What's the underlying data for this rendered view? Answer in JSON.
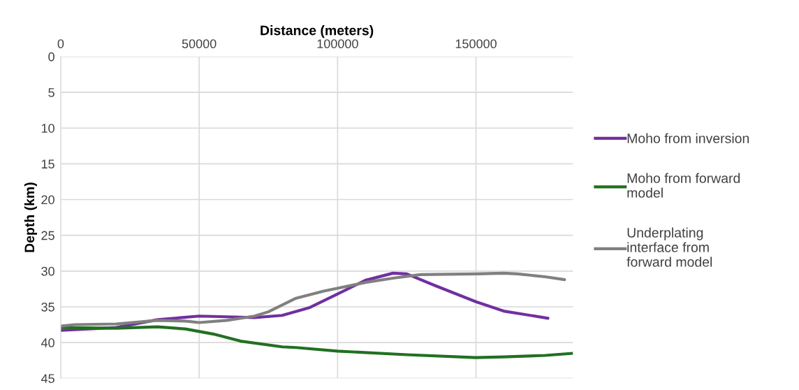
{
  "chart_data": {
    "type": "line",
    "xlabel": "Distance (meters)",
    "ylabel": "Depth (km)",
    "xlim": [
      0,
      185000
    ],
    "xticks": [
      0,
      50000,
      100000,
      150000
    ],
    "ylim": [
      45,
      0
    ],
    "yticks": [
      0,
      5,
      10,
      15,
      20,
      25,
      30,
      35,
      40,
      45
    ],
    "grid": true,
    "legend": "right",
    "marker": "none",
    "line_style": "solid",
    "series": [
      {
        "name": "Moho from inversion",
        "color": "#7030a0",
        "x": [
          0,
          20000,
          35000,
          50000,
          60000,
          70000,
          80000,
          90000,
          100000,
          110000,
          120000,
          125000,
          135000,
          150000,
          160000,
          176000
        ],
        "values": [
          38.3,
          37.9,
          36.8,
          36.3,
          36.4,
          36.5,
          36.2,
          35.1,
          33.2,
          31.3,
          30.3,
          30.4,
          32,
          34.3,
          35.6,
          36.6
        ]
      },
      {
        "name": "Moho from forward model",
        "color": "#217021",
        "x": [
          0,
          20000,
          35000,
          45000,
          55000,
          65000,
          80000,
          85000,
          100000,
          125000,
          150000,
          160000,
          175000,
          185000
        ],
        "values": [
          37.9,
          38.0,
          37.8,
          38.1,
          38.8,
          39.8,
          40.6,
          40.7,
          41.2,
          41.7,
          42.1,
          42.0,
          41.8,
          41.5
        ]
      },
      {
        "name": "Underplating interface from forward model",
        "color": "#808080",
        "x": [
          0,
          5000,
          20000,
          35000,
          45000,
          50000,
          60000,
          70000,
          75000,
          85000,
          95000,
          110000,
          120000,
          130000,
          150000,
          160000,
          165000,
          175000,
          182000
        ],
        "values": [
          37.7,
          37.5,
          37.4,
          36.9,
          37.0,
          37.2,
          36.9,
          36.3,
          35.7,
          33.8,
          32.8,
          31.6,
          31.0,
          30.5,
          30.4,
          30.3,
          30.4,
          30.8,
          31.2
        ]
      }
    ]
  }
}
